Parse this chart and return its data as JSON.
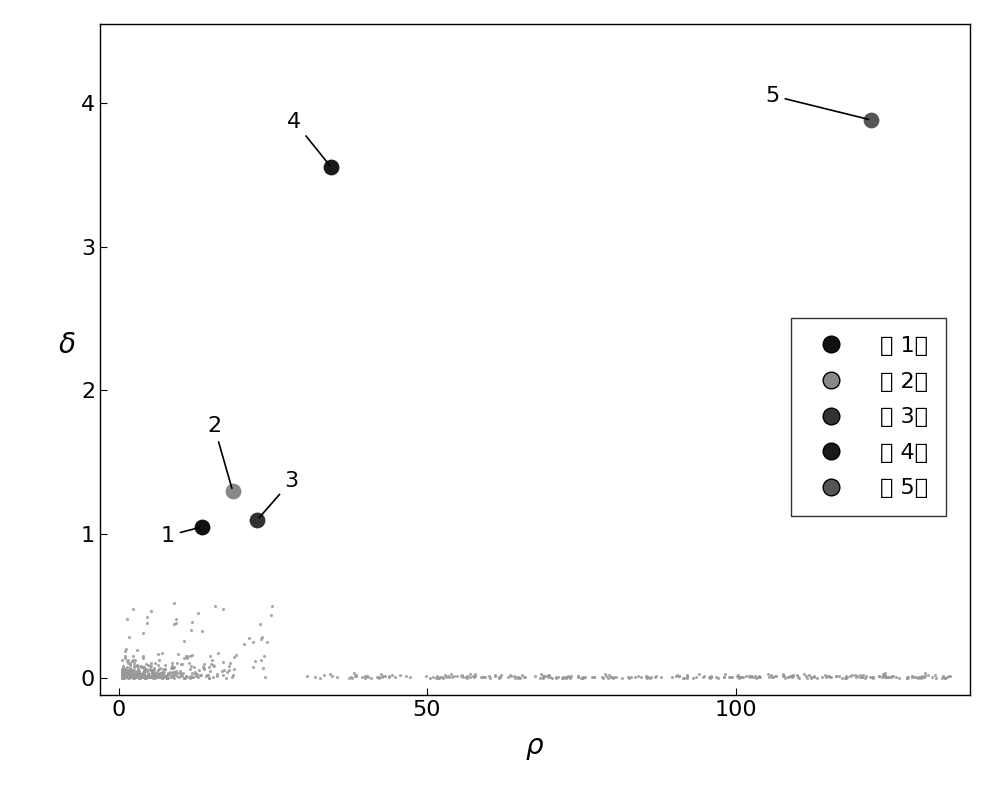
{
  "cluster_centers": [
    {
      "label": "1",
      "rho": 13.5,
      "delta": 1.05,
      "color": "#111111"
    },
    {
      "label": "2",
      "rho": 18.5,
      "delta": 1.3,
      "color": "#888888"
    },
    {
      "label": "3",
      "rho": 22.5,
      "delta": 1.1,
      "color": "#333333"
    },
    {
      "label": "4",
      "rho": 34.5,
      "delta": 3.55,
      "color": "#1a1a1a"
    },
    {
      "label": "5",
      "rho": 122.0,
      "delta": 3.88,
      "color": "#555555"
    }
  ],
  "annotation_positions": [
    {
      "label": "1",
      "text_rho": 8.0,
      "text_delta": 0.92
    },
    {
      "label": "2",
      "text_rho": 15.5,
      "text_delta": 1.68
    },
    {
      "label": "3",
      "text_rho": 28.0,
      "text_delta": 1.3
    },
    {
      "label": "4",
      "text_rho": 28.5,
      "text_delta": 3.8
    },
    {
      "label": "5",
      "text_rho": 106.0,
      "text_delta": 3.98
    }
  ],
  "noise_color": "#999999",
  "xlim": [
    -3,
    138
  ],
  "ylim": [
    -0.12,
    4.55
  ],
  "xticks": [
    0,
    50,
    100
  ],
  "yticks": [
    0,
    1,
    2,
    3,
    4
  ],
  "xlabel": "$\\rho$",
  "ylabel": "$\\delta$",
  "legend_labels": [
    "第 1类",
    "第 2类",
    "第 3类",
    "第 4类",
    "第 5类"
  ],
  "legend_colors": [
    "#111111",
    "#888888",
    "#333333",
    "#1a1a1a",
    "#555555"
  ],
  "marker_size_centers": 130,
  "marker_size_noise": 5,
  "xlabel_fontsize": 20,
  "ylabel_fontsize": 20,
  "tick_fontsize": 16,
  "legend_fontsize": 16,
  "annotation_fontsize": 16
}
